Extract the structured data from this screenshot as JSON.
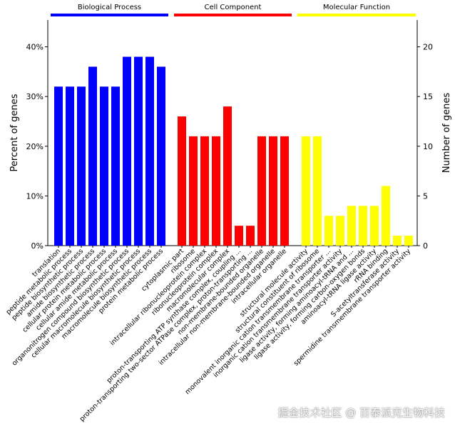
{
  "chart_data": {
    "type": "bar",
    "ylabel_left": "Percent of genes",
    "ylabel_right": "Number of genes",
    "left_ticks": [
      "0%",
      "10%",
      "20%",
      "30%",
      "40%"
    ],
    "right_ticks": [
      "0",
      "5",
      "10",
      "15",
      "20"
    ],
    "ylim_count": [
      0,
      22.7
    ],
    "groups": [
      {
        "name": "Biological Process",
        "color": "#0000ff",
        "categories": [
          "translation",
          "peptide metabolic process",
          "peptide biosynthetic process",
          "amide biosynthetic process",
          "cellular protein metabolic process",
          "cellular amide metabolic process",
          "organonitrogen compound biosynthetic process",
          "cellular macromolecule biosynthetic process",
          "macromolecule biosynthetic process",
          "protein metabolic process"
        ],
        "counts": [
          16,
          16,
          16,
          18,
          16,
          16,
          19,
          19,
          19,
          18
        ]
      },
      {
        "name": "Cell Component",
        "color": "#ff0000",
        "categories": [
          "cytoplasmic part",
          "ribosome",
          "intracellular ribonucleoprotein complex",
          "ribonucleoprotein complex",
          "macromolecular complex",
          "proton-transporting ATP synthase complex, coupling ...",
          "proton-transporting two-sector ATPase complex, proton-transporting ...",
          "non-membrane-bounded organelle",
          "intracellular non-membrane-bounded organelle",
          "intracellular organelle"
        ],
        "counts": [
          13,
          11,
          11,
          11,
          14,
          2,
          2,
          11,
          11,
          11
        ]
      },
      {
        "name": "Molecular Function",
        "color": "#ffff00",
        "categories": [
          "structural molecule activity",
          "structural constituent of ribosome",
          "monovalent inorganic cation transmembrane transporter ...",
          "inorganic cation transmembrane transporter activity",
          "ligase activity, forming aminoacyl-tRNA and ...",
          "ligase activity, forming carbon-oxygen bonds",
          "aminoacyl-tRNA ligase activity",
          "rRNA binding",
          "S-acetyltransferase activity",
          "spermidine transmembrane transporter activity"
        ],
        "counts": [
          11,
          11,
          3,
          3,
          4,
          4,
          4,
          6,
          1,
          1
        ]
      }
    ]
  },
  "watermark": "掘金技术社区 @ 百泰派克生物科技"
}
